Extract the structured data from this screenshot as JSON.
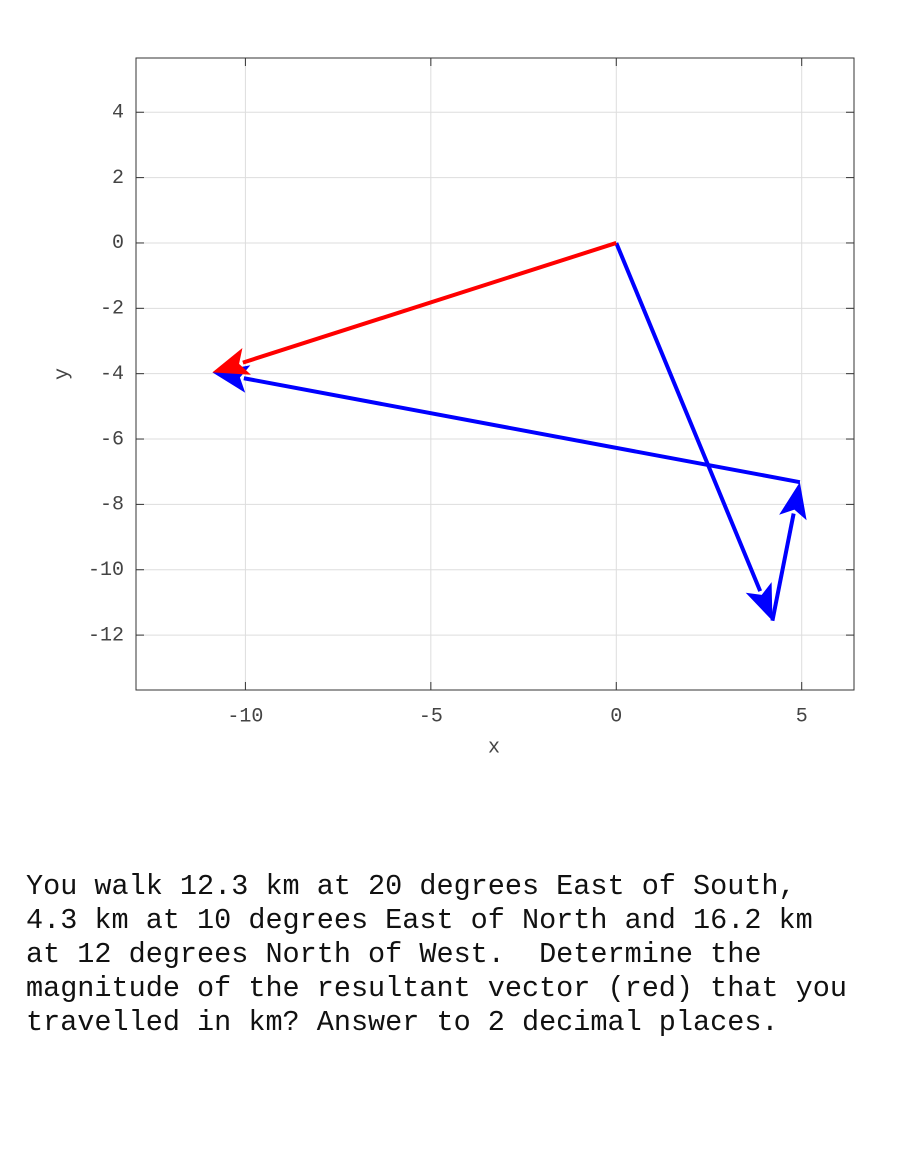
{
  "chart_data": {
    "type": "quiver",
    "xlabel": "x",
    "ylabel": "y",
    "xlim": [
      -12.95,
      6.41
    ],
    "ylim": [
      -13.68,
      5.66
    ],
    "xticks": [
      -10,
      -5,
      0,
      5
    ],
    "yticks": [
      -12,
      -10,
      -8,
      -6,
      -4,
      -2,
      0,
      2,
      4
    ],
    "grid": true,
    "vectors": [
      {
        "color": "#0000ff",
        "x": [
          0,
          4.21
        ],
        "y": [
          0,
          -11.56
        ]
      },
      {
        "color": "#0000ff",
        "x": [
          4.21,
          4.95
        ],
        "y": [
          -11.56,
          -7.32
        ]
      },
      {
        "color": "#0000ff",
        "x": [
          4.95,
          -10.89
        ],
        "y": [
          -7.32,
          -3.96
        ]
      },
      {
        "color": "#ff0000",
        "x": [
          0,
          -10.89
        ],
        "y": [
          0,
          -3.96
        ]
      }
    ]
  },
  "question": {
    "lines": [
      "You walk 12.3 km at 20 degrees East of South,",
      "4.3 km at 10 degrees East of North and 16.2 km",
      "at 12 degrees North of West.  Determine the",
      "magnitude of the resultant vector (red) that you",
      "travelled in km? Answer to 2 decimal places."
    ]
  }
}
